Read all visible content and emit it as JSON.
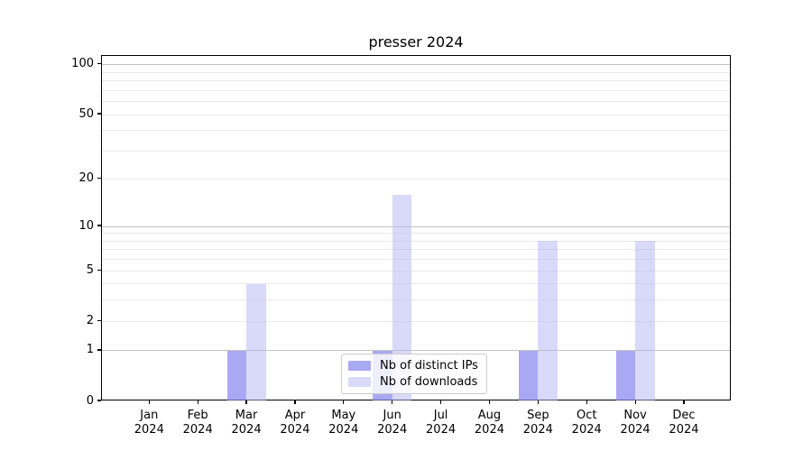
{
  "chart_data": {
    "type": "bar",
    "title": "presser 2024",
    "categories": [
      "Jan",
      "Feb",
      "Mar",
      "Apr",
      "May",
      "Jun",
      "Jul",
      "Aug",
      "Sep",
      "Oct",
      "Nov",
      "Dec"
    ],
    "tick_year": "2024",
    "series": [
      {
        "name": "Nb of distinct IPs",
        "color": "rgba(132,132,238,0.70)",
        "swatch_color": "#a8a8f3",
        "values": [
          0,
          0,
          1,
          0,
          0,
          1,
          0,
          0,
          1,
          0,
          1,
          0
        ]
      },
      {
        "name": "Nb of downloads",
        "color": "rgba(180,180,245,0.50)",
        "swatch_color": "#d9d9fa",
        "values": [
          0,
          0,
          4,
          0,
          0,
          16,
          0,
          0,
          8,
          0,
          8,
          0
        ]
      }
    ],
    "y_axis": {
      "scale": "log10(value+1)",
      "tick_labels": [
        100,
        50,
        20,
        10,
        5,
        2,
        1,
        0
      ],
      "major_gridlines": [
        100,
        10,
        1
      ],
      "minor_gridlines": [
        90,
        80,
        70,
        60,
        50,
        40,
        30,
        20,
        9,
        8,
        7,
        6,
        5,
        4,
        3,
        2
      ],
      "range": [
        0,
        113
      ]
    },
    "xlabel": "",
    "ylabel": "",
    "grid": true,
    "legend_position": "lower center"
  },
  "colors": {
    "major_grid": "#c3c3c3",
    "minor_grid": "#eaeaea",
    "spine": "#000000",
    "background": "#ffffff",
    "legend_border": "#cccccc"
  }
}
